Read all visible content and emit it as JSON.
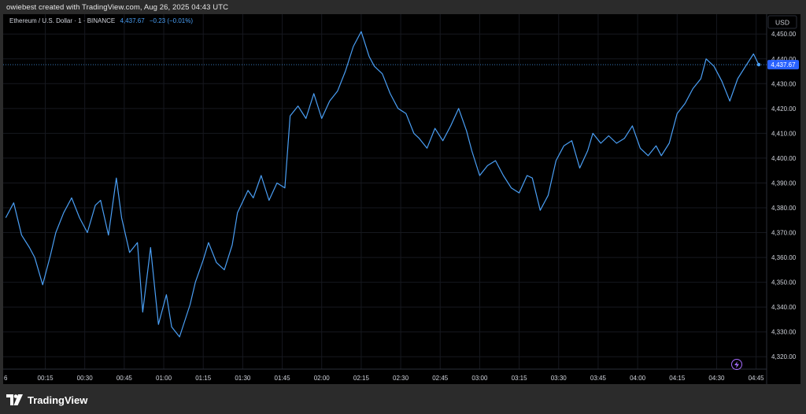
{
  "caption": "owiebest created with TradingView.com, Aug 26, 2025 04:43 UTC",
  "legend": {
    "symbol": "Ethereum / U.S. Dollar · 1 · BINANCE",
    "price": "4,437.67",
    "change": "−0.23 (−0.01%)"
  },
  "currency_button": "USD",
  "brand": {
    "name": "TradingView"
  },
  "colors": {
    "line": "#4a9ff5",
    "price_tag": "#2962ff",
    "background": "#000000",
    "lightning": "#a66dff"
  },
  "icons": [
    "tradingview-logo-icon",
    "lightning-icon"
  ],
  "chart_data": {
    "type": "line",
    "symbol": "Ethereum / U.S. Dollar",
    "interval": "1",
    "exchange": "BINANCE",
    "currency": "USD",
    "last_price": 4437.67,
    "last_price_label": "4,437.67",
    "ylim": [
      4315,
      4458
    ],
    "y_ticks": [
      4320,
      4330,
      4340,
      4350,
      4360,
      4370,
      4380,
      4390,
      4400,
      4410,
      4420,
      4430,
      4440,
      4450
    ],
    "y_tick_labels": [
      "4,320.00",
      "4,330.00",
      "4,340.00",
      "4,350.00",
      "4,360.00",
      "4,370.00",
      "4,380.00",
      "4,390.00",
      "4,400.00",
      "4,410.00",
      "4,420.00",
      "4,430.00",
      "4,440.00",
      "4,450.00"
    ],
    "x_ticks": [
      "00:15",
      "00:30",
      "00:45",
      "01:00",
      "01:15",
      "01:30",
      "01:45",
      "02:00",
      "02:15",
      "02:30",
      "02:45",
      "03:00",
      "03:15",
      "03:30",
      "03:45",
      "04:00",
      "04:15",
      "04:30",
      "04:45"
    ],
    "x_first_partial_label": "6",
    "x_range_minutes": [
      -1,
      289
    ],
    "grid": true,
    "series": [
      {
        "t": [
          0,
          3,
          6,
          9,
          11,
          14,
          17,
          19,
          22,
          25,
          28,
          31,
          34,
          36,
          39,
          42,
          44,
          47,
          50,
          52,
          55,
          58,
          61,
          63,
          66,
          70,
          72,
          75,
          77,
          80,
          83,
          86,
          88,
          92,
          94,
          97,
          100,
          103,
          106,
          108,
          111,
          114,
          117,
          120,
          123,
          126,
          129,
          132,
          135,
          138,
          140,
          143,
          146,
          149,
          152,
          155,
          157,
          160,
          163,
          166,
          169,
          172,
          175,
          177,
          180,
          183,
          186,
          189,
          192,
          195,
          198,
          200,
          203,
          206,
          209,
          212,
          215,
          218,
          221,
          223,
          226,
          229,
          232,
          235,
          238,
          241,
          244,
          247,
          249,
          252,
          255,
          258,
          261,
          264,
          266,
          269,
          272,
          275,
          278,
          281,
          284,
          286
        ],
        "price": [
          4376,
          4382,
          4369,
          4364,
          4360,
          4349,
          4361,
          4370,
          4378,
          4384,
          4376,
          4370,
          4381,
          4383,
          4369,
          4392,
          4376,
          4362,
          4366,
          4338,
          4364,
          4333,
          4345,
          4332,
          4328,
          4341,
          4350,
          4359,
          4366,
          4358,
          4355,
          4365,
          4378,
          4387,
          4384,
          4393,
          4383,
          4390,
          4388,
          4417,
          4421,
          4416,
          4426,
          4416,
          4423,
          4427,
          4435,
          4445,
          4451,
          4441,
          4437,
          4434,
          4426,
          4420,
          4418,
          4410,
          4408,
          4404,
          4412,
          4407,
          4413,
          4420,
          4411,
          4403,
          4393,
          4397,
          4399,
          4393,
          4388,
          4386,
          4393,
          4392,
          4379,
          4385,
          4399,
          4405,
          4407,
          4396,
          4403,
          4410,
          4406,
          4409,
          4406,
          4408,
          4413,
          4404,
          4401,
          4405,
          4401,
          4406,
          4418,
          4422,
          4428,
          4432,
          4440,
          4437,
          4431,
          4423,
          4432,
          4437,
          4442,
          4437.67
        ]
      }
    ]
  }
}
